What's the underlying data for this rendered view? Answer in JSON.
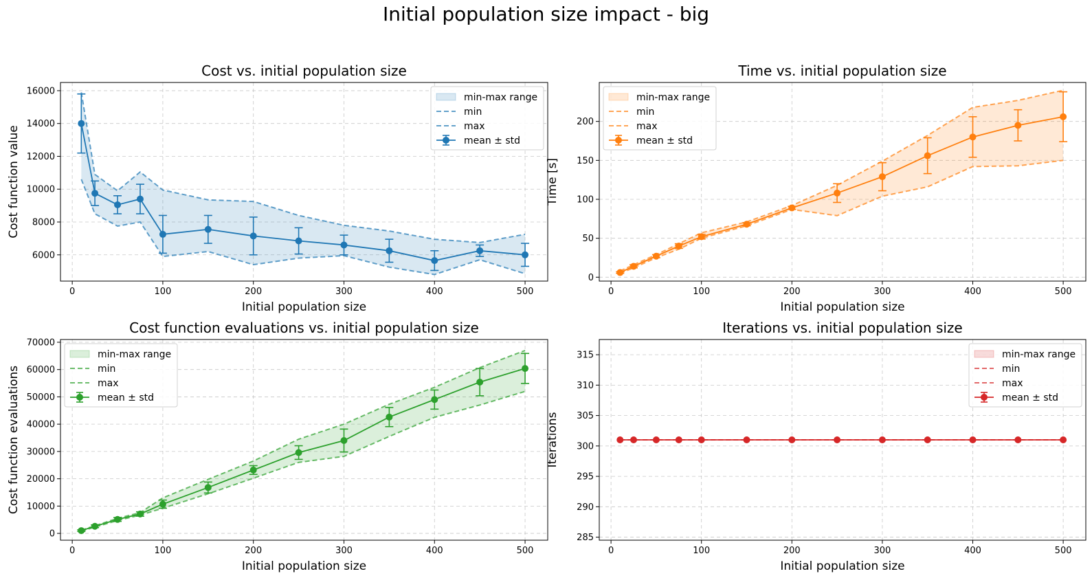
{
  "figure": {
    "suptitle": "Initial population size impact - big"
  },
  "chart_data": [
    {
      "type": "line",
      "title": "Cost vs. initial population size",
      "xlabel": "Initial population size",
      "ylabel": "Cost function value",
      "color": "#1f77b4",
      "xlim": [
        -13,
        525
      ],
      "ylim": [
        4400,
        16500
      ],
      "xticks": [
        0,
        100,
        200,
        300,
        400,
        500
      ],
      "yticks": [
        6000,
        8000,
        10000,
        12000,
        14000,
        16000
      ],
      "ytick_labels": [
        "6000",
        "8000",
        "10000",
        "12000",
        "14000",
        "16000"
      ],
      "grid": true,
      "legend_position": "upper right",
      "legend": [
        "min-max range",
        "min",
        "max",
        "mean ± std"
      ],
      "x": [
        10,
        25,
        50,
        75,
        100,
        150,
        200,
        250,
        300,
        350,
        400,
        450,
        500
      ],
      "mean": [
        14000,
        9750,
        9050,
        9400,
        7250,
        7550,
        7150,
        6850,
        6600,
        6250,
        5650,
        6250,
        6000
      ],
      "std": [
        1800,
        750,
        550,
        900,
        1150,
        850,
        1150,
        800,
        600,
        700,
        600,
        350,
        700
      ],
      "min": [
        10600,
        8500,
        7750,
        8000,
        5900,
        6200,
        5400,
        5800,
        5950,
        5250,
        4800,
        5700,
        4850
      ],
      "max": [
        15900,
        10900,
        9900,
        11050,
        9950,
        9350,
        9250,
        8400,
        7800,
        7450,
        6950,
        6750,
        7250
      ]
    },
    {
      "type": "line",
      "title": "Time vs. initial population size",
      "xlabel": "Initial population size",
      "ylabel": "Time [s]",
      "color": "#ff7f0e",
      "xlim": [
        -13,
        525
      ],
      "ylim": [
        -5,
        250
      ],
      "xticks": [
        0,
        100,
        200,
        300,
        400,
        500
      ],
      "yticks": [
        0,
        50,
        100,
        150,
        200
      ],
      "ytick_labels": [
        "0",
        "50",
        "100",
        "150",
        "200"
      ],
      "grid": true,
      "legend_position": "upper left",
      "legend": [
        "min-max range",
        "min",
        "max",
        "mean ± std"
      ],
      "x": [
        10,
        25,
        50,
        75,
        100,
        150,
        200,
        250,
        300,
        350,
        400,
        450,
        500
      ],
      "mean": [
        6,
        14,
        27,
        40,
        52,
        68,
        89,
        108,
        129,
        156,
        180,
        195,
        206
      ],
      "std": [
        1,
        2,
        2,
        3,
        3,
        2,
        2,
        12,
        18,
        23,
        26,
        20,
        32
      ],
      "min": [
        5,
        12,
        25,
        36,
        50,
        66,
        87,
        79,
        104,
        116,
        142,
        143,
        150
      ],
      "max": [
        8,
        16,
        29,
        43,
        57,
        71,
        92,
        118,
        149,
        182,
        218,
        227,
        240
      ]
    },
    {
      "type": "line",
      "title": "Cost function evaluations vs. initial population size",
      "xlabel": "Initial population size",
      "ylabel": "Cost function evaluations",
      "color": "#2ca02c",
      "xlim": [
        -13,
        525
      ],
      "ylim": [
        -2500,
        71000
      ],
      "xticks": [
        0,
        100,
        200,
        300,
        400,
        500
      ],
      "yticks": [
        0,
        10000,
        20000,
        30000,
        40000,
        50000,
        60000,
        70000
      ],
      "ytick_labels": [
        "0",
        "10000",
        "20000",
        "30000",
        "40000",
        "50000",
        "60000",
        "70000"
      ],
      "grid": true,
      "legend_position": "upper left",
      "legend": [
        "min-max range",
        "min",
        "max",
        "mean ± std"
      ],
      "x": [
        10,
        25,
        50,
        75,
        100,
        150,
        200,
        250,
        300,
        350,
        400,
        450,
        500
      ],
      "mean": [
        1000,
        2600,
        5100,
        7100,
        10700,
        16800,
        23200,
        29600,
        34000,
        42600,
        49000,
        55400,
        60400
      ],
      "std": [
        300,
        500,
        700,
        800,
        1500,
        2000,
        1600,
        2500,
        4200,
        3500,
        3500,
        5000,
        5500
      ],
      "min": [
        800,
        2300,
        4700,
        6700,
        9200,
        14500,
        20200,
        26000,
        28200,
        35500,
        42500,
        47000,
        52000
      ],
      "max": [
        1200,
        2800,
        5500,
        7600,
        13000,
        19800,
        26500,
        34500,
        40000,
        47300,
        53500,
        60700,
        67000
      ]
    },
    {
      "type": "line",
      "title": "Iterations vs. initial population size",
      "xlabel": "Initial population size",
      "ylabel": "Iterations",
      "color": "#d62728",
      "xlim": [
        -13,
        525
      ],
      "ylim": [
        284.5,
        317.5
      ],
      "xticks": [
        0,
        100,
        200,
        300,
        400,
        500
      ],
      "yticks": [
        285,
        290,
        295,
        300,
        305,
        310,
        315
      ],
      "ytick_labels": [
        "285",
        "290",
        "295",
        "300",
        "305",
        "310",
        "315"
      ],
      "grid": true,
      "legend_position": "upper right",
      "legend": [
        "min-max range",
        "min",
        "max",
        "mean ± std"
      ],
      "x": [
        10,
        25,
        50,
        75,
        100,
        150,
        200,
        250,
        300,
        350,
        400,
        450,
        500
      ],
      "mean": [
        301,
        301,
        301,
        301,
        301,
        301,
        301,
        301,
        301,
        301,
        301,
        301,
        301
      ],
      "std": [
        0,
        0,
        0,
        0,
        0,
        0,
        0,
        0,
        0,
        0,
        0,
        0,
        0
      ],
      "min": [
        301,
        301,
        301,
        301,
        301,
        301,
        301,
        301,
        301,
        301,
        301,
        301,
        301
      ],
      "max": [
        301,
        301,
        301,
        301,
        301,
        301,
        301,
        301,
        301,
        301,
        301,
        301,
        301
      ]
    }
  ]
}
